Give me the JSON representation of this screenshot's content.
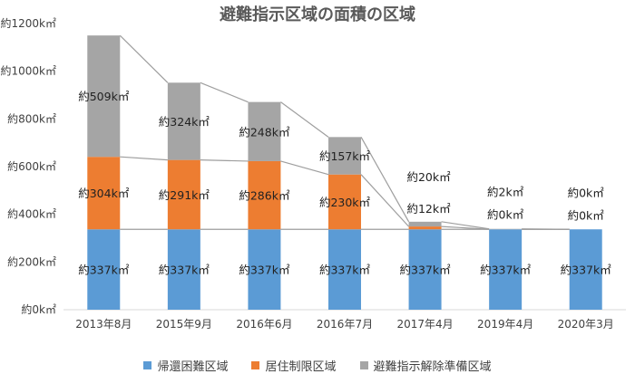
{
  "chart_data": {
    "type": "bar",
    "stacked": true,
    "title": "避難指示区域の面積の区域",
    "categories": [
      "2013年8月",
      "2015年9月",
      "2016年6月",
      "2016年7月",
      "2017年4月",
      "2019年4月",
      "2020年3月"
    ],
    "series": [
      {
        "name": "帰還困難区域",
        "color": "#5b9bd5",
        "values": [
          337,
          337,
          337,
          337,
          337,
          337,
          337
        ],
        "labels": [
          "約337k㎡",
          "約337k㎡",
          "約337k㎡",
          "約337k㎡",
          "約337k㎡",
          "約337k㎡",
          "約337k㎡"
        ]
      },
      {
        "name": "居住制限区域",
        "color": "#ed7d31",
        "values": [
          304,
          291,
          286,
          230,
          12,
          0,
          0
        ],
        "labels": [
          "約304k㎡",
          "約291k㎡",
          "約286k㎡",
          "約230k㎡",
          "約12k㎡",
          "約0k㎡",
          "約0k㎡"
        ]
      },
      {
        "name": "避難指示解除準備区域",
        "color": "#a5a5a5",
        "values": [
          509,
          324,
          248,
          157,
          20,
          2,
          0
        ],
        "labels": [
          "約509k㎡",
          "約324k㎡",
          "約248k㎡",
          "約157k㎡",
          "約20k㎡",
          "約2k㎡",
          "約0k㎡"
        ]
      }
    ],
    "ylim": [
      0,
      1200
    ],
    "yticks": [
      0,
      200,
      400,
      600,
      800,
      1000,
      1200
    ],
    "ytick_labels": [
      "約0k㎡",
      "約200k㎡",
      "約400k㎡",
      "約600k㎡",
      "約800k㎡",
      "約1000k㎡",
      "約1200k㎡"
    ],
    "series_lines": true,
    "grid": false,
    "legend_position": "bottom"
  }
}
